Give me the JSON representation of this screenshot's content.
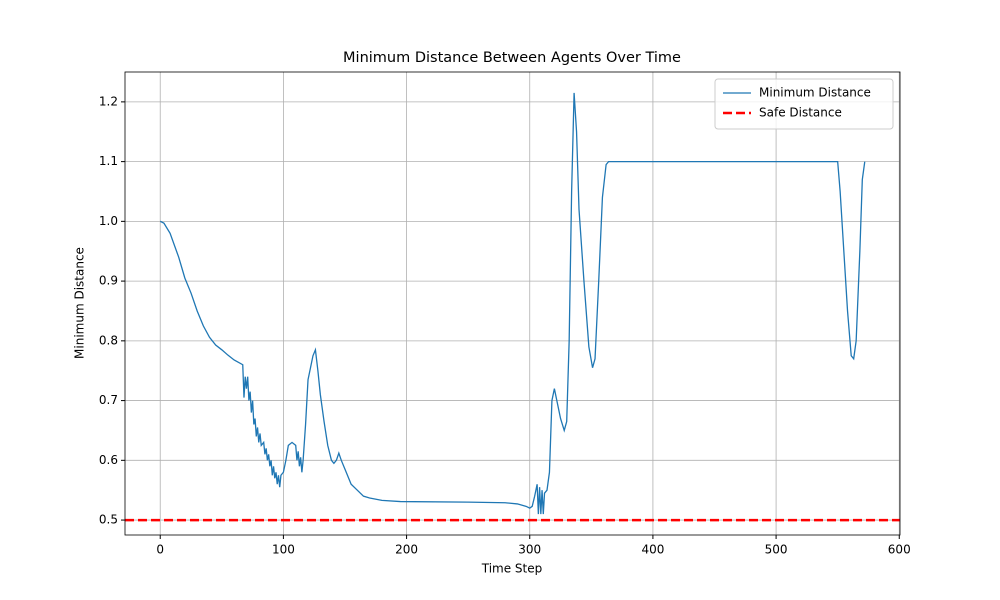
{
  "chart_data": {
    "type": "line",
    "title": "Minimum Distance Between Agents Over Time",
    "xlabel": "Time Step",
    "ylabel": "Minimum Distance",
    "xlim": [
      -28.6,
      600.6
    ],
    "xticks": [
      0,
      100,
      200,
      300,
      400,
      500,
      600
    ],
    "ylim": [
      0.475,
      1.25
    ],
    "yticks": [
      {
        "value": 0.5,
        "label": "0.5"
      },
      {
        "value": 0.6,
        "label": "0.6"
      },
      {
        "value": 0.7,
        "label": "0.7"
      },
      {
        "value": 0.8,
        "label": "0.8"
      },
      {
        "value": 0.9,
        "label": "0.9"
      },
      {
        "value": 1.0,
        "label": "1.0"
      },
      {
        "value": 1.1,
        "label": "1.1"
      },
      {
        "value": 1.2,
        "label": "1.2"
      }
    ],
    "grid": true,
    "legend": "upper right",
    "series": [
      {
        "name": "Minimum Distance",
        "color": "#1f77b4",
        "x": [
          0,
          3,
          8,
          15,
          20,
          25,
          30,
          35,
          40,
          45,
          50,
          55,
          60,
          67,
          68,
          69,
          70,
          71,
          72,
          73,
          74,
          75,
          76,
          77,
          78,
          79,
          80,
          81,
          82,
          84,
          85,
          86,
          87,
          88,
          89,
          90,
          91,
          92,
          93,
          94,
          95,
          96,
          97,
          98,
          100,
          102,
          104,
          107,
          110,
          111,
          112,
          113,
          114,
          115,
          116,
          118,
          120,
          122,
          124,
          126,
          128,
          130,
          133,
          136,
          139,
          141,
          143,
          145,
          147,
          150,
          155,
          160,
          165,
          170,
          180,
          195,
          250,
          280,
          290,
          297,
          300,
          302,
          304,
          306,
          307,
          308,
          309,
          310,
          311,
          312,
          314,
          316,
          318,
          320,
          322,
          325,
          328,
          330,
          332,
          334,
          336,
          338,
          340,
          344,
          348,
          351,
          353,
          356,
          359,
          362,
          364,
          550,
          552,
          555,
          558,
          561,
          563,
          565,
          568,
          570,
          572
        ],
        "values": [
          1.0,
          0.997,
          0.98,
          0.94,
          0.905,
          0.88,
          0.85,
          0.825,
          0.806,
          0.793,
          0.785,
          0.776,
          0.768,
          0.76,
          0.705,
          0.74,
          0.72,
          0.74,
          0.7,
          0.715,
          0.68,
          0.7,
          0.66,
          0.67,
          0.64,
          0.655,
          0.63,
          0.645,
          0.625,
          0.63,
          0.61,
          0.62,
          0.6,
          0.61,
          0.59,
          0.6,
          0.575,
          0.59,
          0.57,
          0.58,
          0.56,
          0.575,
          0.555,
          0.575,
          0.58,
          0.6,
          0.625,
          0.63,
          0.625,
          0.6,
          0.615,
          0.59,
          0.605,
          0.58,
          0.6,
          0.66,
          0.735,
          0.755,
          0.775,
          0.785,
          0.75,
          0.71,
          0.665,
          0.625,
          0.6,
          0.595,
          0.6,
          0.612,
          0.6,
          0.585,
          0.56,
          0.55,
          0.54,
          0.537,
          0.533,
          0.531,
          0.53,
          0.529,
          0.527,
          0.523,
          0.52,
          0.523,
          0.54,
          0.56,
          0.51,
          0.555,
          0.51,
          0.55,
          0.51,
          0.545,
          0.55,
          0.58,
          0.7,
          0.72,
          0.7,
          0.67,
          0.65,
          0.665,
          0.8,
          1.05,
          1.215,
          1.15,
          1.02,
          0.9,
          0.79,
          0.755,
          0.77,
          0.9,
          1.04,
          1.095,
          1.1,
          1.1,
          1.05,
          0.95,
          0.85,
          0.775,
          0.77,
          0.8,
          0.95,
          1.07,
          1.1
        ]
      },
      {
        "name": "Safe Distance",
        "color": "#ff0000",
        "line_style": "dashed",
        "hline": 0.5
      }
    ]
  }
}
